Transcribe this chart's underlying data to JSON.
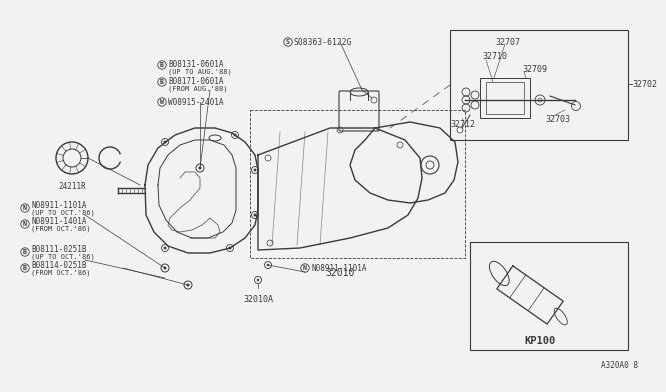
{
  "bg_color": "#f2f2f2",
  "line_color": "#3a3a3a",
  "fig_width": 6.4,
  "fig_height": 3.72,
  "diagram_code": "A320A0 8",
  "parts": {
    "main_label": "32010",
    "bottom_label": "32010A",
    "left_ring_label": "24211R",
    "top_bolt1": "B08131-0601A",
    "top_bolt1_note": "(UP TO AUG.'88)",
    "top_bolt2": "B08171-0601A",
    "top_bolt2_note": "(FROM AUG.'88)",
    "washer": "W08915-2401A",
    "screw_top": "S08363-6122G",
    "nut1a": "N08911-1101A",
    "nut1a_note": "(UP TO OCT.'86)",
    "nut1b": "N08911-1401A",
    "nut1b_note": "(FROM OCT.'86)",
    "bolt_bl1": "B08111-0251B",
    "bolt_bl1_note": "(UP TO OCT.'86)",
    "bolt_bl2": "B08114-0251B",
    "bolt_bl2_note": "(FROM OCT.'86)",
    "nut_bottom": "N08911-1101A",
    "inset_label": "KP100",
    "detail_32702": "32702",
    "detail_32707": "32707",
    "detail_32710": "32710",
    "detail_32709": "32709",
    "detail_32703": "32703",
    "detail_32712": "32712"
  }
}
